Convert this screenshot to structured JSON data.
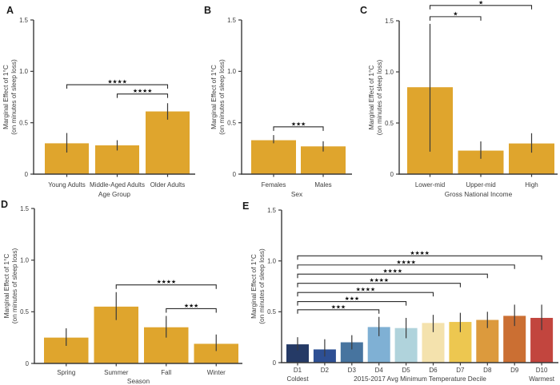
{
  "figure": {
    "background": "#ffffff",
    "axis_color": "#3a3a3a",
    "text_color": "#3d3d3d",
    "error_bar_color": "#3a3a3a",
    "bracket_color": "#2b2b2b",
    "gold_bar_color": "#dfa52d"
  },
  "chart_data": [
    {
      "id": "A",
      "letter": "A",
      "type": "bar",
      "xlabel": "Age Group",
      "ylabel_line1": "Marginal Effect of 1°C",
      "ylabel_line2": "(on minutes of sleep loss)",
      "ylim": [
        0,
        1.5
      ],
      "yticks": [
        0,
        0.5,
        1.0,
        1.5
      ],
      "ytick_labels": [
        "0",
        "0.5",
        "1.0",
        "1.5"
      ],
      "categories": [
        "Young Adults",
        "Middle-Aged Adults",
        "Older Adults"
      ],
      "values": [
        0.3,
        0.28,
        0.61
      ],
      "err_low": [
        0.21,
        0.23,
        0.53
      ],
      "err_high": [
        0.4,
        0.33,
        0.69
      ],
      "bar_colors": [
        "#dfa52d",
        "#dfa52d",
        "#dfa52d"
      ],
      "significance": [
        {
          "from": 0,
          "to": 2,
          "y": 0.87,
          "stars": "★★★★"
        },
        {
          "from": 1,
          "to": 2,
          "y": 0.78,
          "stars": "★★★★"
        }
      ]
    },
    {
      "id": "B",
      "letter": "B",
      "type": "bar",
      "xlabel": "Sex",
      "ylabel_line1": "Marginal Effect of 1°C",
      "ylabel_line2": "(on minutes of sleep loss)",
      "ylim": [
        0,
        1.5
      ],
      "yticks": [
        0,
        0.5,
        1.0,
        1.5
      ],
      "ytick_labels": [
        "0",
        "0.5",
        "1.0",
        "1.5"
      ],
      "categories": [
        "Females",
        "Males"
      ],
      "values": [
        0.33,
        0.27
      ],
      "err_low": [
        0.3,
        0.22
      ],
      "err_high": [
        0.38,
        0.32
      ],
      "bar_colors": [
        "#dfa52d",
        "#dfa52d"
      ],
      "significance": [
        {
          "from": 0,
          "to": 1,
          "y": 0.46,
          "stars": "★★★"
        }
      ]
    },
    {
      "id": "C",
      "letter": "C",
      "type": "bar",
      "xlabel": "Gross National Income",
      "ylabel_line1": "Marginal Effect of 1°C",
      "ylabel_line2": "(on minutes of sleep loss)",
      "ylim": [
        0,
        1.5
      ],
      "yticks": [
        0,
        0.5,
        1.0,
        1.5
      ],
      "ytick_labels": [
        "0",
        "0.5",
        "1.0",
        "1.5"
      ],
      "categories": [
        "Lower-mid",
        "Upper-mid",
        "High"
      ],
      "values": [
        0.85,
        0.23,
        0.3
      ],
      "err_low": [
        0.22,
        0.15,
        0.21
      ],
      "err_high": [
        1.47,
        0.32,
        0.4
      ],
      "bar_colors": [
        "#dfa52d",
        "#dfa52d",
        "#dfa52d"
      ],
      "significance": [
        {
          "from": 0,
          "to": 1,
          "y": 1.54,
          "stars": "★"
        },
        {
          "from": 0,
          "to": 2,
          "y": 1.65,
          "stars": "★"
        }
      ]
    },
    {
      "id": "D",
      "letter": "D",
      "type": "bar",
      "xlabel": "Season",
      "ylabel_line1": "Marginal Effect of 1°C",
      "ylabel_line2": "(on minutes of sleep loss)",
      "ylim": [
        0,
        1.5
      ],
      "yticks": [
        0,
        0.5,
        1.0,
        1.5
      ],
      "ytick_labels": [
        "0",
        "0.5",
        "1.0",
        "1.5"
      ],
      "categories": [
        "Spring",
        "Summer",
        "Fall",
        "Winter"
      ],
      "values": [
        0.25,
        0.55,
        0.35,
        0.19
      ],
      "err_low": [
        0.17,
        0.42,
        0.25,
        0.12
      ],
      "err_high": [
        0.34,
        0.69,
        0.46,
        0.28
      ],
      "bar_colors": [
        "#dfa52d",
        "#dfa52d",
        "#dfa52d",
        "#dfa52d"
      ],
      "significance": [
        {
          "from": 1,
          "to": 3,
          "y": 0.76,
          "stars": "★★★★"
        },
        {
          "from": 2,
          "to": 3,
          "y": 0.53,
          "stars": "★★★"
        }
      ]
    },
    {
      "id": "E",
      "letter": "E",
      "type": "bar",
      "xlabel": "2015-2017 Avg Minimum Temperature Decile",
      "ylabel_line1": "Marginal Effect of 1°C",
      "ylabel_line2": "(on minutes of sleep loss)",
      "ylim": [
        0,
        1.5
      ],
      "yticks": [
        0,
        0.5,
        1.0,
        1.5
      ],
      "ytick_labels": [
        "0",
        "0.5",
        "1.0",
        "1.5"
      ],
      "categories": [
        "D1",
        "D2",
        "D3",
        "D4",
        "D5",
        "D6",
        "D7",
        "D8",
        "D9",
        "D10"
      ],
      "sublabels": [
        "Coldest",
        "",
        "",
        "",
        "",
        "",
        "",
        "",
        "",
        "Warmest"
      ],
      "values": [
        0.18,
        0.13,
        0.2,
        0.35,
        0.34,
        0.39,
        0.4,
        0.42,
        0.46,
        0.44
      ],
      "err_low": [
        0.12,
        0.06,
        0.13,
        0.26,
        0.24,
        0.3,
        0.3,
        0.34,
        0.36,
        0.32
      ],
      "err_high": [
        0.25,
        0.23,
        0.27,
        0.45,
        0.44,
        0.47,
        0.49,
        0.5,
        0.57,
        0.57
      ],
      "bar_colors": [
        "#253a66",
        "#2d4f93",
        "#47749f",
        "#7fb0d4",
        "#b0d3dc",
        "#f4e2ad",
        "#edc750",
        "#dc9a3d",
        "#cb6f33",
        "#c2453e"
      ],
      "significance": [
        {
          "from": 0,
          "to": 3,
          "y": 0.52,
          "stars": "★★★"
        },
        {
          "from": 0,
          "to": 4,
          "y": 0.6,
          "stars": "★★★"
        },
        {
          "from": 0,
          "to": 5,
          "y": 0.69,
          "stars": "★★★★"
        },
        {
          "from": 0,
          "to": 6,
          "y": 0.78,
          "stars": "★★★★"
        },
        {
          "from": 0,
          "to": 7,
          "y": 0.87,
          "stars": "★★★★"
        },
        {
          "from": 0,
          "to": 8,
          "y": 0.96,
          "stars": "★★★★"
        },
        {
          "from": 0,
          "to": 9,
          "y": 1.05,
          "stars": "★★★★"
        }
      ]
    }
  ]
}
